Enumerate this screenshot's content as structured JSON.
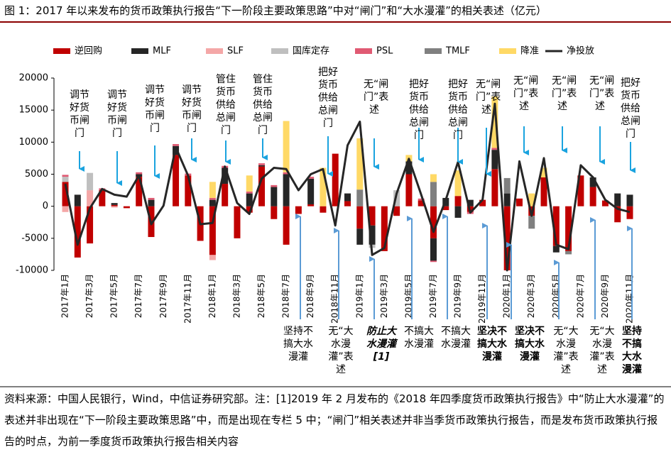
{
  "chart_data": {
    "type": "bar",
    "title": "图 1：2017 年以来发布的货币政策执行报告“下一阶段主要政策思路”中对“闸门”和“大水漫灌”的相关表述（亿元）",
    "categories": [
      "2017年1月",
      null,
      "2017年3月",
      null,
      "2017年5月",
      null,
      "2017年7月",
      null,
      "2017年9月",
      null,
      "2017年11月",
      null,
      "2018年1月",
      null,
      "2018年3月",
      null,
      "2018年5月",
      null,
      "2018年7月",
      null,
      "2018年9月",
      null,
      "2018年11月",
      null,
      "2019年1月",
      null,
      "2019年3月",
      null,
      "2019年5月",
      null,
      "2019年7月",
      null,
      "2019年9月",
      null,
      "2019年11月",
      null,
      "2020年1月",
      null,
      "2020年3月",
      null,
      "2020年5月",
      null,
      "2020年7月",
      null,
      "2020年9月",
      null,
      "2020年11月"
    ],
    "series": [
      {
        "name": "逆回购",
        "color": "#c00000",
        "values": [
          3800,
          -8000,
          -5800,
          2500,
          200,
          -300,
          4600,
          -4800,
          0,
          8000,
          4800,
          -5400,
          -7600,
          3500,
          -5000,
          -1000,
          6200,
          -2000,
          -6000,
          -1200,
          300,
          -1000,
          8200,
          800,
          -3500,
          -3000,
          -7000,
          -1500,
          5000,
          900,
          -5000,
          -600,
          1600,
          -900,
          1000,
          5800,
          -10000,
          1200,
          -1500,
          4500,
          -6200,
          -7000,
          4800,
          3000,
          900,
          -2500,
          -2000
        ]
      },
      {
        "name": "MLF",
        "color": "#262626",
        "values": [
          0,
          1800,
          0,
          0,
          300,
          0,
          400,
          1000,
          0,
          1400,
          0,
          0,
          1000,
          2500,
          0,
          2000,
          200,
          3000,
          5000,
          0,
          4000,
          0,
          0,
          1200,
          -2500,
          -3000,
          0,
          0,
          2000,
          0,
          -3500,
          1300,
          -1800,
          1000,
          0,
          3000,
          2000,
          0,
          0,
          0,
          -1000,
          0,
          0,
          1500,
          0,
          2000,
          1800
        ]
      },
      {
        "name": "SLF",
        "color": "#f4a7a7",
        "values": [
          -900,
          0,
          2500,
          0,
          -200,
          0,
          0,
          0,
          0,
          0,
          0,
          0,
          -800,
          0,
          0,
          0,
          0,
          0,
          0,
          0,
          0,
          0,
          0,
          0,
          0,
          0,
          0,
          0,
          0,
          0,
          0,
          0,
          0,
          0,
          0,
          0,
          0,
          0,
          0,
          0,
          0,
          0,
          0,
          0,
          0,
          0,
          0
        ]
      },
      {
        "name": "国库定存",
        "color": "#bfbfbf",
        "values": [
          800,
          0,
          2700,
          0,
          0,
          0,
          0,
          0,
          0,
          0,
          0,
          0,
          0,
          0,
          0,
          0,
          0,
          0,
          0,
          0,
          0,
          0,
          0,
          0,
          0,
          -500,
          0,
          2500,
          0,
          0,
          0,
          0,
          0,
          0,
          0,
          0,
          0,
          0,
          0,
          0,
          0,
          0,
          0,
          0,
          0,
          0,
          0
        ]
      },
      {
        "name": "PSL",
        "color": "#e05a73",
        "values": [
          300,
          0,
          0,
          300,
          0,
          0,
          300,
          300,
          0,
          300,
          300,
          0,
          300,
          300,
          0,
          300,
          300,
          300,
          300,
          0,
          300,
          0,
          0,
          0,
          0,
          0,
          0,
          0,
          0,
          300,
          -200,
          0,
          0,
          -300,
          0,
          300,
          0,
          0,
          0,
          0,
          0,
          0,
          0,
          0,
          0,
          0,
          0
        ]
      },
      {
        "name": "TMLF",
        "color": "#808080",
        "values": [
          0,
          0,
          0,
          0,
          0,
          0,
          0,
          0,
          0,
          0,
          0,
          0,
          0,
          0,
          0,
          0,
          0,
          0,
          0,
          0,
          0,
          0,
          0,
          0,
          2600,
          0,
          0,
          0,
          0,
          0,
          3800,
          0,
          0,
          0,
          0,
          0,
          2400,
          0,
          -2000,
          0,
          0,
          -500,
          0,
          0,
          0,
          0,
          0
        ]
      },
      {
        "name": "降准",
        "color": "#ffd966",
        "values": [
          0,
          0,
          0,
          0,
          0,
          0,
          0,
          0,
          0,
          0,
          0,
          0,
          2500,
          0,
          0,
          2500,
          0,
          0,
          8000,
          0,
          0,
          6000,
          0,
          0,
          8000,
          0,
          0,
          0,
          1000,
          0,
          1200,
          0,
          4000,
          0,
          0,
          8000,
          0,
          0,
          2000,
          1500,
          0,
          0,
          0,
          0,
          0,
          0,
          0
        ]
      },
      {
        "name": "净投放",
        "color": "#262626",
        "type": "line",
        "values": [
          3500,
          -6000,
          -300,
          2700,
          1800,
          1500,
          4800,
          -2800,
          100,
          9200,
          4800,
          -2800,
          -2600,
          6200,
          500,
          -1200,
          4300,
          6000,
          5800,
          2500,
          5000,
          5800,
          -3000,
          9500,
          13200,
          -7600,
          -6500,
          2000,
          7400,
          1800,
          -4000,
          1000,
          6900,
          -1000,
          1000,
          16000,
          -10000,
          7000,
          -1500,
          7500,
          -6000,
          -6700,
          6400,
          4500,
          1000,
          -400,
          -900
        ]
      }
    ],
    "ylim": [
      -10000,
      20000
    ],
    "yticks": [
      -10000,
      -5000,
      0,
      5000,
      10000,
      15000,
      20000
    ],
    "annotations_top": [
      "调节好货币闸门",
      "调节好货币闸门",
      "调节好货币闸门",
      "调节好货币闸门",
      "管住货币供给总闸门",
      "管住货币供给总闸门",
      "把好货币供给总闸门",
      "无“闸门”表述",
      "把好货币供给总闸门",
      "把好货币供给总闸门",
      "无“闸门”表述",
      "无“闸门”表述",
      "无“闸门”表述",
      "无“闸门”表述",
      "把好货币供给总闸门"
    ],
    "annotations_bottom": [
      "坚持不搞大水漫灌",
      "无“大水漫灌”表述",
      "防止大水漫灌[1]",
      "不搞大水漫灌",
      "不搞大水漫灌",
      "坚决不搞大水漫灌",
      "坚决不搞大水漫灌",
      "无“大水漫灌”表述",
      "无“大水漫灌”表述",
      "坚持不搞大水漫灌"
    ],
    "source": "资料来源：中国人民银行，Wind，中信证券研究部。注：[1]2019 年 2 月发布的《2018 年四季度货币政策执行报告》中“防止大水漫灌”的表述并非出现在“下一阶段主要政策思路”中，而是出现在专栏 5 中；“闸门”相关表述并非当季货币政策执行报告，而是发布货币政策执行报告的时点，为前一季度货币政策执行报告相关内容"
  }
}
